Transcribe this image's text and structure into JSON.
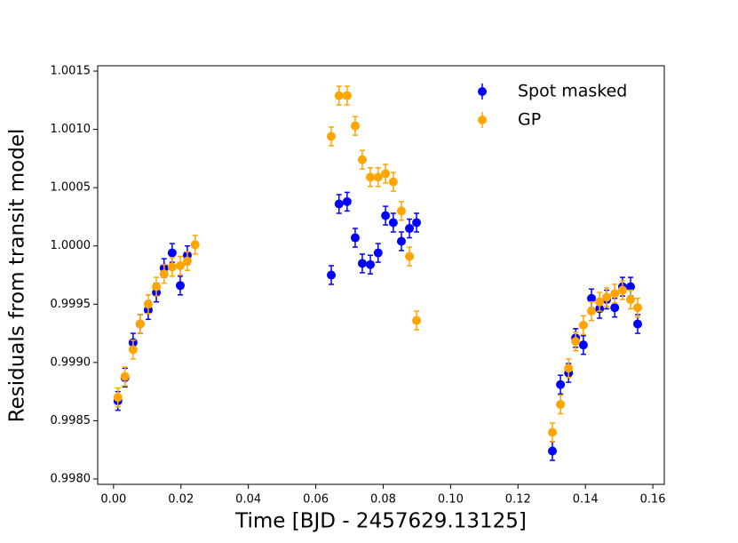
{
  "chart_data": {
    "type": "errorbar_scatter",
    "xlabel": "Time [BJD - 2457629.13125]",
    "ylabel": "Residuals from transit model",
    "xlim": [
      -0.0047,
      0.1634
    ],
    "ylim": [
      0.997954,
      1.001546
    ],
    "xticks": [
      {
        "value": 0,
        "label": "0.00"
      },
      0.02,
      0.04,
      0.06,
      0.08,
      {
        "value": 0.1,
        "label": "0.10"
      },
      0.12,
      0.14,
      0.16
    ],
    "yticks": [
      {
        "value": 0.998,
        "label": "0.9980"
      },
      0.9985,
      {
        "value": 0.999,
        "label": "0.9990"
      },
      0.9995,
      {
        "value": 1.0,
        "label": "1.0000"
      },
      1.0005,
      {
        "value": 1.001,
        "label": "1.0010"
      },
      1.0015
    ],
    "legend": "upper right",
    "series": [
      {
        "name": "Spot masked",
        "color": "#0000ff",
        "x": [
          0.0013,
          0.0034,
          0.0058,
          0.0079,
          0.0103,
          0.0127,
          0.015,
          0.0174,
          0.0198,
          0.0219,
          0.0646,
          0.0669,
          0.0693,
          0.0717,
          0.0738,
          0.0762,
          0.0785,
          0.0807,
          0.083,
          0.0854,
          0.0878,
          0.0899,
          0.1302,
          0.1326,
          0.135,
          0.1371,
          0.1394,
          0.1418,
          0.1442,
          0.1463,
          0.1487,
          0.151,
          0.1534,
          0.1555
        ],
        "values": [
          0.99867,
          0.99887,
          0.99917,
          0.99933,
          0.99945,
          0.9996,
          0.99981,
          0.99994,
          0.99966,
          0.99992,
          0.99975,
          1.00036,
          1.00038,
          1.00007,
          0.99985,
          0.99984,
          0.99994,
          1.00026,
          1.0002,
          1.00004,
          1.00015,
          1.0002,
          0.99824,
          0.99881,
          0.99891,
          0.99921,
          0.99915,
          0.99955,
          0.99946,
          0.99954,
          0.99947,
          0.99965,
          0.99965,
          0.99933
        ],
        "errors": [
          8e-05,
          8e-05,
          8e-05,
          8e-05,
          8e-05,
          8e-05,
          8e-05,
          8e-05,
          8e-05,
          8e-05,
          8e-05,
          8e-05,
          8e-05,
          8e-05,
          8e-05,
          8e-05,
          8e-05,
          8e-05,
          8e-05,
          8e-05,
          8e-05,
          8e-05,
          8e-05,
          8e-05,
          8e-05,
          8e-05,
          8e-05,
          8e-05,
          8e-05,
          8e-05,
          8e-05,
          8e-05,
          8e-05,
          8e-05
        ]
      },
      {
        "name": "GP",
        "color": "#ffa500",
        "x": [
          0.0013,
          0.0034,
          0.0058,
          0.0079,
          0.0103,
          0.0127,
          0.015,
          0.0174,
          0.0198,
          0.0219,
          0.0242,
          0.0646,
          0.0669,
          0.0693,
          0.0717,
          0.0738,
          0.0762,
          0.0785,
          0.0807,
          0.083,
          0.0854,
          0.0878,
          0.0899,
          0.1302,
          0.1326,
          0.135,
          0.1371,
          0.1394,
          0.1418,
          0.1442,
          0.1463,
          0.1487,
          0.151,
          0.1534,
          0.1555
        ],
        "values": [
          0.9987,
          0.99888,
          0.99911,
          0.99933,
          0.9995,
          0.99965,
          0.99976,
          0.99982,
          0.99983,
          0.99987,
          1.00001,
          1.00094,
          1.00129,
          1.00129,
          1.00103,
          1.00074,
          1.00059,
          1.00059,
          1.00062,
          1.00055,
          1.0003,
          0.99991,
          0.99936,
          0.9984,
          0.99864,
          0.99895,
          0.99918,
          0.99932,
          0.99944,
          0.99952,
          0.99956,
          0.99959,
          0.99962,
          0.99954,
          0.99947
        ],
        "errors": [
          8e-05,
          8e-05,
          8e-05,
          8e-05,
          8e-05,
          8e-05,
          8e-05,
          8e-05,
          8e-05,
          8e-05,
          8e-05,
          8e-05,
          8e-05,
          8e-05,
          8e-05,
          8e-05,
          8e-05,
          8e-05,
          8e-05,
          8e-05,
          8e-05,
          8e-05,
          8e-05,
          8e-05,
          8e-05,
          8e-05,
          8e-05,
          8e-05,
          8e-05,
          8e-05,
          8e-05,
          8e-05,
          8e-05,
          8e-05,
          8e-05
        ]
      }
    ]
  }
}
